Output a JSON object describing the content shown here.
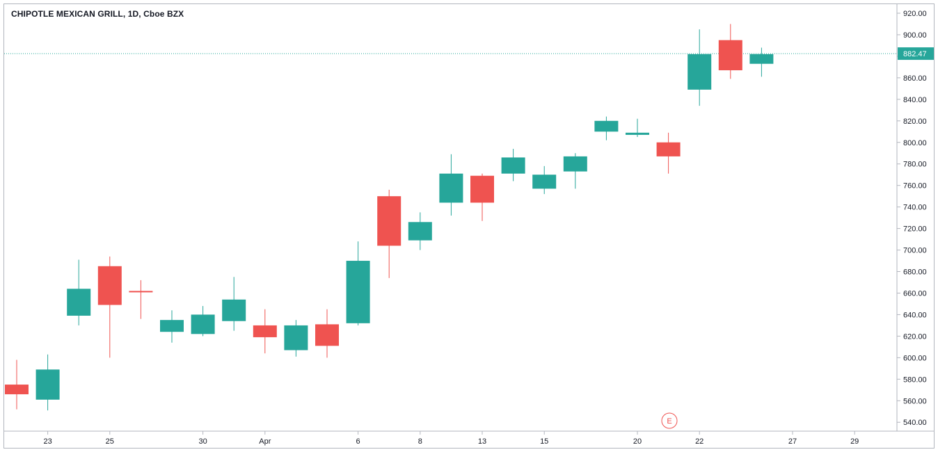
{
  "title": "CHIPOTLE MEXICAN GRILL, 1D, Cboe BZX",
  "colors": {
    "up": "#26a69a",
    "down": "#ef5350",
    "axis": "#b2b5be",
    "text": "#131722",
    "price_line": "#26a69a"
  },
  "last_price_label": "882.47",
  "earnings_marker": "E",
  "chart_data": {
    "type": "candlestick",
    "title": "CHIPOTLE MEXICAN GRILL, 1D, Cboe BZX",
    "ylim": [
      530,
      928
    ],
    "y_ticks": [
      "920.00",
      "900.00",
      "880.00",
      "860.00",
      "840.00",
      "820.00",
      "800.00",
      "780.00",
      "760.00",
      "740.00",
      "720.00",
      "700.00",
      "680.00",
      "660.00",
      "640.00",
      "620.00",
      "600.00",
      "580.00",
      "560.00",
      "540.00"
    ],
    "x_ticks": [
      "23",
      "25",
      "30",
      "Apr",
      "6",
      "8",
      "13",
      "15",
      "20",
      "22",
      "27",
      "29"
    ],
    "last_price": 882.47,
    "candles": [
      {
        "date": "22",
        "open": 575,
        "high": 598,
        "low": 552,
        "close": 566
      },
      {
        "date": "23",
        "open": 561,
        "high": 603,
        "low": 551,
        "close": 589
      },
      {
        "date": "24",
        "open": 639,
        "high": 691,
        "low": 630,
        "close": 664
      },
      {
        "date": "25",
        "open": 685,
        "high": 694,
        "low": 600,
        "close": 649
      },
      {
        "date": "26",
        "open": 662,
        "high": 672,
        "low": 636,
        "close": 661
      },
      {
        "date": "27",
        "open": 624,
        "high": 644,
        "low": 614,
        "close": 635
      },
      {
        "date": "30",
        "open": 622,
        "high": 648,
        "low": 620,
        "close": 640
      },
      {
        "date": "31",
        "open": 634,
        "high": 675,
        "low": 625,
        "close": 654
      },
      {
        "date": "Apr",
        "open": 630,
        "high": 645,
        "low": 604,
        "close": 619
      },
      {
        "date": "2",
        "open": 607,
        "high": 635,
        "low": 601,
        "close": 630
      },
      {
        "date": "3",
        "open": 631,
        "high": 645,
        "low": 600,
        "close": 611
      },
      {
        "date": "6",
        "open": 632,
        "high": 708,
        "low": 630,
        "close": 690
      },
      {
        "date": "7",
        "open": 750,
        "high": 756,
        "low": 674,
        "close": 704
      },
      {
        "date": "8",
        "open": 709,
        "high": 735,
        "low": 700,
        "close": 726
      },
      {
        "date": "9",
        "open": 744,
        "high": 789,
        "low": 732,
        "close": 771
      },
      {
        "date": "13",
        "open": 769,
        "high": 771,
        "low": 727,
        "close": 744
      },
      {
        "date": "14",
        "open": 771,
        "high": 794,
        "low": 764,
        "close": 786
      },
      {
        "date": "15",
        "open": 757,
        "high": 778,
        "low": 752,
        "close": 770
      },
      {
        "date": "16",
        "open": 773,
        "high": 790,
        "low": 757,
        "close": 787
      },
      {
        "date": "17",
        "open": 810,
        "high": 824,
        "low": 802,
        "close": 820
      },
      {
        "date": "20",
        "open": 807,
        "high": 822,
        "low": 805,
        "close": 809
      },
      {
        "date": "21",
        "open": 800,
        "high": 809,
        "low": 771,
        "close": 787
      },
      {
        "date": "22",
        "open": 849,
        "high": 905,
        "low": 834,
        "close": 882
      },
      {
        "date": "23",
        "open": 895,
        "high": 910,
        "low": 859,
        "close": 867
      },
      {
        "date": "24",
        "open": 873,
        "high": 888,
        "low": 861,
        "close": 882
      }
    ]
  }
}
